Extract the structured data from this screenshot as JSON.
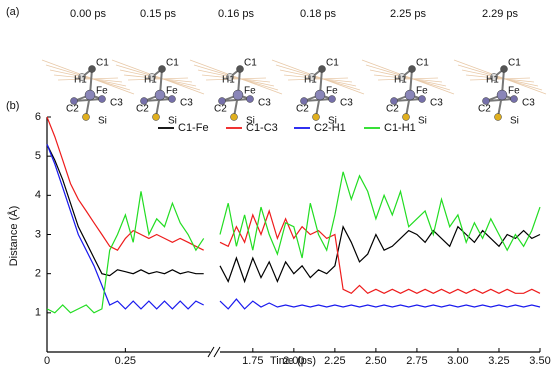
{
  "panel_a": {
    "label": "(a)",
    "snapshots": [
      {
        "time": "0.00 ps",
        "atoms": [
          "C1",
          "H1",
          "Fe",
          "C2",
          "C3",
          "Si"
        ]
      },
      {
        "time": "0.15 ps",
        "atoms": [
          "C1",
          "H1",
          "Fe",
          "C2",
          "C3",
          "Si"
        ]
      },
      {
        "time": "0.16 ps",
        "atoms": [
          "C1",
          "H1",
          "Fe",
          "C2",
          "C3",
          "Si"
        ]
      },
      {
        "time": "0.18 ps",
        "atoms": [
          "C1",
          "H1",
          "Fe",
          "C2",
          "C3",
          "Si"
        ]
      },
      {
        "time": "2.25 ps",
        "atoms": [
          "C1",
          "H1",
          "Fe",
          "C2",
          "C3",
          "Si"
        ]
      },
      {
        "time": "2.29 ps",
        "atoms": [
          "C1",
          "H1",
          "Fe",
          "C2",
          "C3",
          "Si"
        ]
      }
    ]
  },
  "chart_data": {
    "type": "line",
    "panel_label": "(b)",
    "xlabel": "Time (ps)",
    "ylabel": "Distance (Å)",
    "ylim": [
      0,
      6
    ],
    "yticks": [
      1,
      2,
      3,
      4,
      5,
      6
    ],
    "x_segments": [
      {
        "xlim": [
          0,
          0.52
        ],
        "xticks": [
          0,
          0.25
        ]
      },
      {
        "xlim": [
          1.55,
          3.5
        ],
        "xticks": [
          1.75,
          {
            "value": 2,
            "label": "2.00"
          },
          2.25,
          {
            "value": 2.5,
            "label": "2.50"
          },
          2.75,
          {
            "value": 3,
            "label": "3.00"
          },
          3.25,
          {
            "value": 3.5,
            "label": "3.50"
          }
        ]
      }
    ],
    "legend": "top",
    "x": [
      0,
      0.025,
      0.05,
      0.075,
      0.1,
      0.125,
      0.15,
      0.175,
      0.2,
      0.225,
      0.25,
      0.275,
      0.3,
      0.325,
      0.35,
      0.375,
      0.4,
      0.425,
      0.45,
      0.475,
      0.5,
      1.55,
      1.6,
      1.65,
      1.7,
      1.75,
      1.8,
      1.85,
      1.9,
      1.95,
      2.0,
      2.05,
      2.1,
      2.15,
      2.2,
      2.25,
      2.3,
      2.35,
      2.4,
      2.45,
      2.5,
      2.55,
      2.6,
      2.65,
      2.7,
      2.75,
      2.8,
      2.85,
      2.9,
      2.95,
      3.0,
      3.05,
      3.1,
      3.15,
      3.2,
      3.25,
      3.3,
      3.35,
      3.4,
      3.45,
      3.5
    ],
    "series": [
      {
        "name": "C1-Fe",
        "color": "#000000",
        "values": [
          5.3,
          4.9,
          4.4,
          3.8,
          3.2,
          2.8,
          2.4,
          2.0,
          1.95,
          2.1,
          2.05,
          2.0,
          2.1,
          2.0,
          2.05,
          2.0,
          2.1,
          2.0,
          2.05,
          2.0,
          2.0,
          2.2,
          1.8,
          2.4,
          1.8,
          2.4,
          1.9,
          2.3,
          1.8,
          2.3,
          2.0,
          2.2,
          1.9,
          2.1,
          2.0,
          2.2,
          3.2,
          2.8,
          2.3,
          2.5,
          3.0,
          2.6,
          2.7,
          2.9,
          3.1,
          3.0,
          2.8,
          3.1,
          2.9,
          2.7,
          3.2,
          3.0,
          2.8,
          3.1,
          2.9,
          2.7,
          3.0,
          2.9,
          3.1,
          2.9,
          3.0
        ]
      },
      {
        "name": "C1-C3",
        "color": "#ee1c1c",
        "values": [
          6.0,
          5.5,
          4.9,
          4.3,
          3.9,
          3.6,
          3.3,
          3.0,
          2.7,
          2.6,
          2.9,
          3.1,
          3.0,
          2.9,
          3.0,
          2.9,
          2.8,
          2.9,
          2.8,
          2.7,
          2.6,
          2.8,
          2.7,
          3.2,
          2.8,
          3.5,
          3.0,
          3.6,
          2.9,
          3.4,
          2.9,
          3.2,
          3.0,
          3.1,
          2.9,
          3.0,
          1.6,
          1.5,
          1.7,
          1.5,
          1.6,
          1.5,
          1.6,
          1.5,
          1.6,
          1.5,
          1.6,
          1.5,
          1.6,
          1.5,
          1.6,
          1.5,
          1.6,
          1.5,
          1.6,
          1.5,
          1.6,
          1.5,
          1.5,
          1.6,
          1.5
        ]
      },
      {
        "name": "C2-H1",
        "color": "#1a1aee",
        "values": [
          5.3,
          4.8,
          4.2,
          3.6,
          3.0,
          2.6,
          2.2,
          1.7,
          1.2,
          1.3,
          1.1,
          1.3,
          1.1,
          1.3,
          1.1,
          1.3,
          1.1,
          1.3,
          1.1,
          1.3,
          1.2,
          1.3,
          1.1,
          1.35,
          1.1,
          1.3,
          1.15,
          1.25,
          1.15,
          1.2,
          1.15,
          1.2,
          1.15,
          1.2,
          1.15,
          1.2,
          1.15,
          1.2,
          1.15,
          1.2,
          1.15,
          1.2,
          1.15,
          1.2,
          1.15,
          1.2,
          1.15,
          1.2,
          1.15,
          1.2,
          1.15,
          1.2,
          1.15,
          1.2,
          1.15,
          1.2,
          1.15,
          1.2,
          1.15,
          1.2,
          1.15
        ]
      },
      {
        "name": "C1-H1",
        "color": "#22dd22",
        "values": [
          1.1,
          1.0,
          1.2,
          1.0,
          1.1,
          1.2,
          1.0,
          1.1,
          2.6,
          3.0,
          3.5,
          2.8,
          4.1,
          3.0,
          3.4,
          3.2,
          3.8,
          3.3,
          3.0,
          2.6,
          2.9,
          3.0,
          3.8,
          2.7,
          3.5,
          2.6,
          3.7,
          3.0,
          2.5,
          3.3,
          3.2,
          2.4,
          3.8,
          3.0,
          2.6,
          3.5,
          4.6,
          3.9,
          4.5,
          4.1,
          3.4,
          4.0,
          3.5,
          4.1,
          3.2,
          3.4,
          3.6,
          3.0,
          3.9,
          3.2,
          3.5,
          2.8,
          3.3,
          2.9,
          3.4,
          3.0,
          2.6,
          3.0,
          2.7,
          3.1,
          3.7
        ]
      }
    ]
  }
}
